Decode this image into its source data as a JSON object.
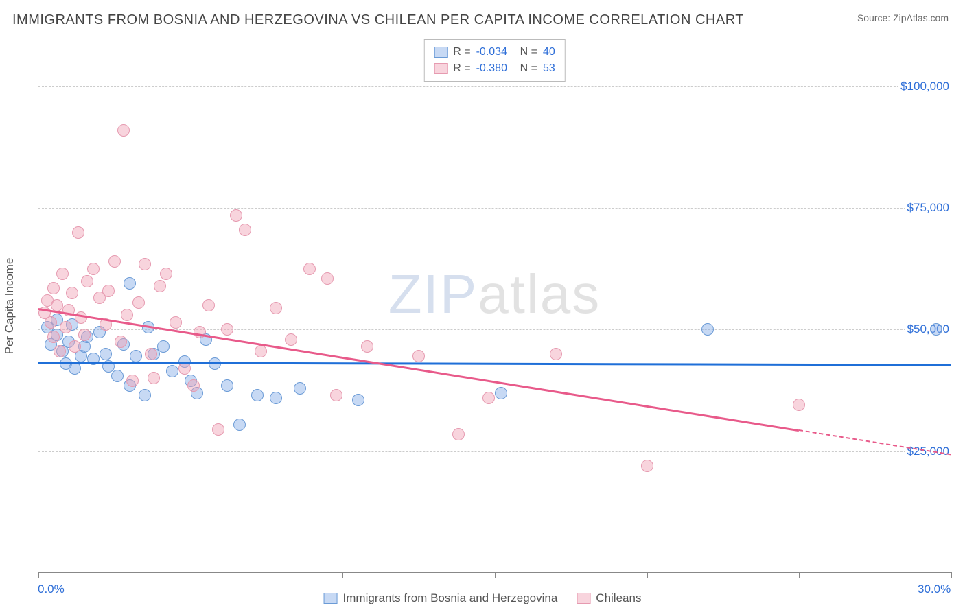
{
  "title": "IMMIGRANTS FROM BOSNIA AND HERZEGOVINA VS CHILEAN PER CAPITA INCOME CORRELATION CHART",
  "source_label": "Source:",
  "source_value": "ZipAtlas.com",
  "ylabel": "Per Capita Income",
  "watermark_z": "ZIP",
  "watermark_rest": "atlas",
  "chart": {
    "type": "scatter",
    "xlim": [
      0,
      30
    ],
    "ylim": [
      0,
      110000
    ],
    "xtick_positions": [
      0,
      5,
      10,
      15,
      20,
      25,
      30
    ],
    "xtick_labels_shown": {
      "0": "0.0%",
      "30": "30.0%"
    },
    "ytick_positions": [
      25000,
      50000,
      75000,
      100000
    ],
    "ytick_labels": [
      "$25,000",
      "$50,000",
      "$75,000",
      "$100,000"
    ],
    "grid_color": "#cccccc",
    "axis_color": "#888888",
    "background_color": "#ffffff",
    "label_color": "#2f6fd8",
    "marker_radius": 9,
    "series": [
      {
        "name": "Immigrants from Bosnia and Herzegovina",
        "short": "bosnia",
        "fill": "rgba(130,170,230,0.45)",
        "stroke": "#6b9bd6",
        "R": "-0.034",
        "N": "40",
        "trend": {
          "x1": 0,
          "y1": 43500,
          "x2": 30,
          "y2": 43000,
          "solid_to_x": 30,
          "color": "#1f6fd8"
        },
        "points": [
          [
            0.3,
            50500
          ],
          [
            0.4,
            47000
          ],
          [
            0.6,
            52000
          ],
          [
            0.6,
            49000
          ],
          [
            0.8,
            45500
          ],
          [
            0.9,
            43000
          ],
          [
            1.0,
            47500
          ],
          [
            1.1,
            51000
          ],
          [
            1.2,
            42000
          ],
          [
            1.4,
            44500
          ],
          [
            1.5,
            46500
          ],
          [
            1.6,
            48500
          ],
          [
            1.8,
            44000
          ],
          [
            2.0,
            49500
          ],
          [
            2.2,
            45000
          ],
          [
            2.3,
            42500
          ],
          [
            2.6,
            40500
          ],
          [
            2.8,
            47000
          ],
          [
            3.0,
            59500
          ],
          [
            3.0,
            38500
          ],
          [
            3.2,
            44500
          ],
          [
            3.5,
            36500
          ],
          [
            3.6,
            50500
          ],
          [
            3.8,
            45000
          ],
          [
            4.1,
            46500
          ],
          [
            4.4,
            41500
          ],
          [
            4.8,
            43500
          ],
          [
            5.0,
            39500
          ],
          [
            5.2,
            37000
          ],
          [
            5.5,
            48000
          ],
          [
            5.8,
            43000
          ],
          [
            6.2,
            38500
          ],
          [
            6.6,
            30500
          ],
          [
            7.2,
            36500
          ],
          [
            7.8,
            36000
          ],
          [
            8.6,
            38000
          ],
          [
            10.5,
            35500
          ],
          [
            15.2,
            37000
          ],
          [
            22.0,
            50000
          ],
          [
            29.5,
            50000
          ]
        ]
      },
      {
        "name": "Chileans",
        "short": "chileans",
        "fill": "rgba(240,160,180,0.45)",
        "stroke": "#e69ab0",
        "R": "-0.380",
        "N": "53",
        "trend": {
          "x1": 0,
          "y1": 54500,
          "x2": 30,
          "y2": 24500,
          "solid_to_x": 25,
          "color": "#e85a8a"
        },
        "points": [
          [
            0.2,
            53500
          ],
          [
            0.3,
            56000
          ],
          [
            0.4,
            51500
          ],
          [
            0.5,
            48500
          ],
          [
            0.5,
            58500
          ],
          [
            0.6,
            55000
          ],
          [
            0.7,
            45500
          ],
          [
            0.8,
            61500
          ],
          [
            0.9,
            50500
          ],
          [
            1.0,
            54000
          ],
          [
            1.1,
            57500
          ],
          [
            1.2,
            46500
          ],
          [
            1.3,
            70000
          ],
          [
            1.4,
            52500
          ],
          [
            1.5,
            49000
          ],
          [
            1.6,
            60000
          ],
          [
            1.8,
            62500
          ],
          [
            2.0,
            56500
          ],
          [
            2.2,
            51000
          ],
          [
            2.3,
            58000
          ],
          [
            2.5,
            64000
          ],
          [
            2.7,
            47500
          ],
          [
            2.8,
            91000
          ],
          [
            2.9,
            53000
          ],
          [
            3.1,
            39500
          ],
          [
            3.3,
            55500
          ],
          [
            3.5,
            63500
          ],
          [
            3.7,
            45000
          ],
          [
            3.8,
            40000
          ],
          [
            4.0,
            59000
          ],
          [
            4.2,
            61500
          ],
          [
            4.5,
            51500
          ],
          [
            4.8,
            42000
          ],
          [
            5.1,
            38500
          ],
          [
            5.3,
            49500
          ],
          [
            5.6,
            55000
          ],
          [
            5.9,
            29500
          ],
          [
            6.2,
            50000
          ],
          [
            6.5,
            73500
          ],
          [
            6.8,
            70500
          ],
          [
            7.3,
            45500
          ],
          [
            7.8,
            54500
          ],
          [
            8.3,
            48000
          ],
          [
            8.9,
            62500
          ],
          [
            9.5,
            60500
          ],
          [
            9.8,
            36500
          ],
          [
            10.8,
            46500
          ],
          [
            12.5,
            44500
          ],
          [
            13.8,
            28500
          ],
          [
            14.8,
            36000
          ],
          [
            17.0,
            45000
          ],
          [
            20.0,
            22000
          ],
          [
            25.0,
            34500
          ]
        ]
      }
    ]
  },
  "legend_top": {
    "r_label": "R =",
    "n_label": "N ="
  },
  "legend_bottom": {
    "items": [
      "Immigrants from Bosnia and Herzegovina",
      "Chileans"
    ]
  }
}
